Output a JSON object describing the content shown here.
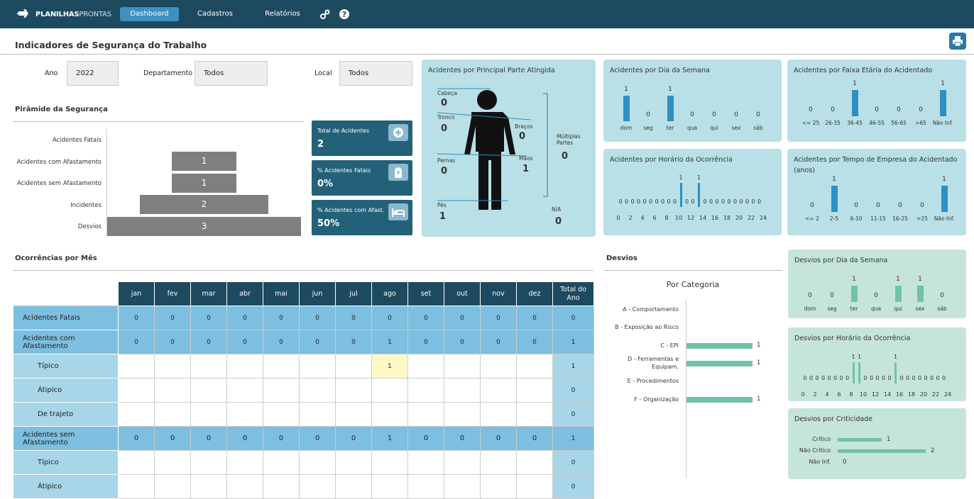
{
  "app": {
    "logo_bold": "PLANILHAS",
    "logo_light": "PRONTAS"
  },
  "nav": {
    "dashboard": "Dashboard",
    "cadastros": "Cadastros",
    "relatorios": "Relatórios"
  },
  "page": {
    "title": "Indicadores de Segurança do Trabalho"
  },
  "filters": {
    "ano_label": "Ano",
    "ano_value": "2022",
    "dep_label": "Departamento",
    "dep_value": "Todos",
    "local_label": "Local",
    "local_value": "Todos"
  },
  "pyramid": {
    "title": "Pirâmide da Segurança",
    "levels": [
      {
        "label": "Acidentes Fatais",
        "value": ""
      },
      {
        "label": "Acidentes com Afastamento",
        "value": "1"
      },
      {
        "label": "Acidentes sem Afastamento",
        "value": "1"
      },
      {
        "label": "Incidentes",
        "value": "2"
      },
      {
        "label": "Desvios",
        "value": "3"
      }
    ]
  },
  "kpis": [
    {
      "title": "Total de Acidentes",
      "value": "2"
    },
    {
      "title": "% Acidentes Fatais",
      "value": "0%"
    },
    {
      "title": "% Acidentes com Afast.",
      "value": "50%"
    }
  ],
  "body_chart": {
    "title": "Acidentes por Principal Parte Atingida",
    "parts": {
      "cabeca": {
        "label": "Cabeça",
        "value": "0"
      },
      "tronco": {
        "label": "Tronco",
        "value": "0"
      },
      "bracos": {
        "label": "Braços",
        "value": "0"
      },
      "maos": {
        "label": "Mãos",
        "value": "1"
      },
      "pernas": {
        "label": "Pernas",
        "value": "0"
      },
      "pes": {
        "label": "Pés",
        "value": "1"
      },
      "multiplas": {
        "label": "Múltiplas Partes",
        "value": "0"
      },
      "na": {
        "label": "N/A",
        "value": "0"
      }
    }
  },
  "chart_data": [
    {
      "type": "bar",
      "title": "Acidentes por Dia da Semana",
      "categories": [
        "dom",
        "seg",
        "ter",
        "qua",
        "qui",
        "sex",
        "sáb"
      ],
      "values": [
        1,
        0,
        1,
        0,
        0,
        0,
        0
      ]
    },
    {
      "type": "bar",
      "title": "Acidentes por Faixa Etária do Acidentado",
      "categories": [
        "<= 25",
        "26-35",
        "36-45",
        "46-55",
        "56-65",
        ">65",
        "Não Inf."
      ],
      "values": [
        0,
        0,
        1,
        0,
        0,
        0,
        1
      ]
    },
    {
      "type": "bar",
      "title": "Acidentes por Horário da Ocorrência",
      "x_ticks": [
        "0",
        "2",
        "4",
        "6",
        "8",
        "10",
        "12",
        "14",
        "16",
        "18",
        "20",
        "22",
        "24"
      ],
      "values": [
        0,
        0,
        0,
        0,
        0,
        0,
        0,
        0,
        0,
        0,
        1,
        0,
        0,
        1,
        0,
        0,
        0,
        0,
        0,
        0,
        0,
        0,
        0,
        0
      ]
    },
    {
      "type": "bar",
      "title": "Acidentes por Tempo de Empresa do Acidentado (anos)",
      "categories": [
        "<= 2",
        "2-5",
        "6-10",
        "11-15",
        "16-25",
        ">25",
        "Não Inf."
      ],
      "values": [
        0,
        1,
        0,
        0,
        0,
        0,
        1
      ]
    },
    {
      "type": "bar",
      "title": "Desvios por Dia da Semana",
      "categories": [
        "dom",
        "seg",
        "ter",
        "qua",
        "qui",
        "sex",
        "sáb"
      ],
      "values": [
        0,
        0,
        1,
        0,
        1,
        1,
        0
      ]
    },
    {
      "type": "bar",
      "title": "Desvios por Horário da Ocorrência",
      "x_ticks": [
        "0",
        "2",
        "4",
        "6",
        "8",
        "10",
        "12",
        "14",
        "16",
        "18",
        "20",
        "22",
        "24"
      ],
      "values": [
        0,
        0,
        0,
        0,
        0,
        0,
        0,
        0,
        1,
        1,
        0,
        0,
        0,
        0,
        0,
        1,
        0,
        0,
        0,
        0,
        0,
        0,
        0,
        0
      ]
    },
    {
      "type": "bar",
      "orientation": "horizontal",
      "title": "Por Categoria",
      "categories": [
        "A - Comportamento",
        "B - Exposição ao Risco",
        "C - EPI",
        "D - Ferramentas e Equipam.",
        "E - Procedimentos",
        "F - Organização"
      ],
      "values": [
        null,
        null,
        1,
        1,
        null,
        1
      ]
    },
    {
      "type": "bar",
      "orientation": "horizontal",
      "title": "Desvios por Criticidade",
      "categories": [
        "Crítico",
        "Não Crítico",
        "Não Inf."
      ],
      "values": [
        1,
        2,
        0
      ]
    }
  ],
  "desvios": {
    "title": "Desvios"
  },
  "occ": {
    "title": "Ocorrências por Mês",
    "months": [
      "jan",
      "fev",
      "mar",
      "abr",
      "mai",
      "jun",
      "jul",
      "ago",
      "set",
      "out",
      "nov",
      "dez"
    ],
    "total_header": "Total do Ano",
    "rows": [
      {
        "label": "Acidentes Fatais",
        "type": "main",
        "cells": [
          "0",
          "0",
          "0",
          "0",
          "0",
          "0",
          "0",
          "0",
          "0",
          "0",
          "0",
          "0"
        ],
        "total": "0"
      },
      {
        "label": "Acidentes com Afastamento",
        "type": "main",
        "cells": [
          "0",
          "0",
          "0",
          "0",
          "0",
          "0",
          "0",
          "1",
          "0",
          "0",
          "0",
          "0"
        ],
        "total": "1"
      },
      {
        "label": "Típico",
        "type": "sub",
        "cells": [
          "",
          "",
          "",
          "",
          "",
          "",
          "",
          "1",
          "",
          "",
          "",
          ""
        ],
        "total": "1"
      },
      {
        "label": "Átipico",
        "type": "sub",
        "cells": [
          "",
          "",
          "",
          "",
          "",
          "",
          "",
          "",
          "",
          "",
          "",
          ""
        ],
        "total": "0"
      },
      {
        "label": "De trajeto",
        "type": "sub",
        "cells": [
          "",
          "",
          "",
          "",
          "",
          "",
          "",
          "",
          "",
          "",
          "",
          ""
        ],
        "total": "0"
      },
      {
        "label": "Acidentes sem Afastamento",
        "type": "main",
        "cells": [
          "0",
          "0",
          "0",
          "0",
          "0",
          "0",
          "0",
          "1",
          "0",
          "0",
          "0",
          "0"
        ],
        "total": "1"
      },
      {
        "label": "Típico",
        "type": "sub",
        "cells": [
          "",
          "",
          "",
          "",
          "",
          "",
          "",
          "",
          "",
          "",
          "",
          ""
        ],
        "total": "0"
      },
      {
        "label": "Átipico",
        "type": "sub",
        "cells": [
          "",
          "",
          "",
          "",
          "",
          "",
          "",
          "",
          "",
          "",
          "",
          ""
        ],
        "total": "0"
      }
    ]
  }
}
